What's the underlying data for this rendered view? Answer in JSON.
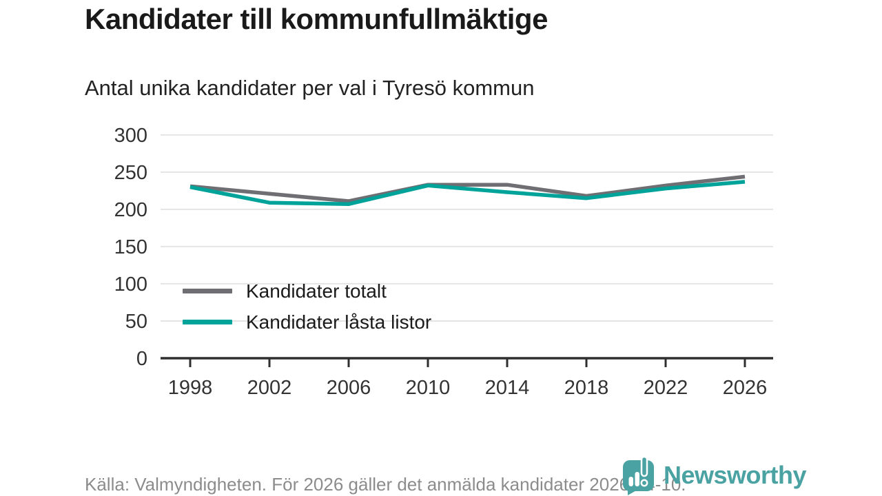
{
  "title": "Kandidater till kommunfullmäktige",
  "subtitle": "Antal unika kandidater per val i Tyresö kommun",
  "footer": {
    "source_text": "Källa: Valmyndigheten. För 2026 gäller det anmälda kandidater 2026-04-10."
  },
  "branding": {
    "wordmark": "Newsworthy",
    "logo_icon": "newsworthy-pin-barchart-icon",
    "brand_color": "#4aa3a2"
  },
  "colors": {
    "text_dark": "#1a1a1a",
    "text_axis": "#333333",
    "text_footer": "#8c8c8c",
    "gridline": "#e4e4e4",
    "axis_line": "#2f2f2f"
  },
  "chart_data": {
    "type": "line",
    "title": "Kandidater till kommunfullmäktige",
    "subtitle": "Antal unika kandidater per val i Tyresö kommun",
    "categories": [
      "1998",
      "2002",
      "2006",
      "2010",
      "2014",
      "2018",
      "2022",
      "2026"
    ],
    "series": [
      {
        "name": "Kandidater totalt",
        "color": "#6e6e73",
        "values": [
          231,
          221,
          211,
          233,
          233,
          218,
          232,
          244
        ]
      },
      {
        "name": "Kandidater låsta listor",
        "color": "#00a39a",
        "values": [
          230,
          209,
          207,
          232,
          223,
          215,
          228,
          237
        ]
      }
    ],
    "ylim": [
      0,
      300
    ],
    "ytick_step": 50,
    "yticks": [
      0,
      50,
      100,
      150,
      200,
      250,
      300
    ],
    "grid": "horizontal-only",
    "legend_position": "inside-middle-left",
    "xlabel": "",
    "ylabel": ""
  }
}
